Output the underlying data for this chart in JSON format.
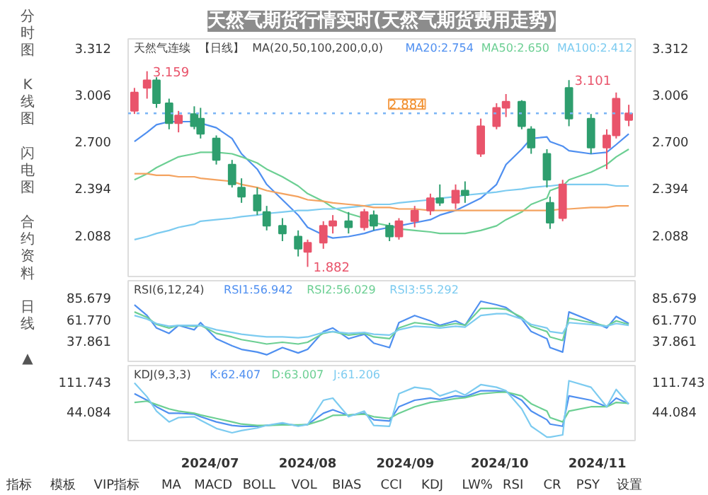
{
  "chart_data": [
    {
      "type": "other",
      "annotations": [
        "分时图",
        "K线图",
        "闪电图",
        "合约资料",
        "日线 ▲"
      ]
    },
    {
      "type": "candlestick",
      "title": "天然气期货行情实时(天然气期货费用走势)",
      "x": [
        "2024-06-07",
        "2024-06-11",
        "2024-06-14",
        "2024-06-18",
        "2024-06-21",
        "2024-06-26",
        "2024-06-28",
        "2024-07-03",
        "2024-07-08",
        "2024-07-11",
        "2024-07-16",
        "2024-07-19",
        "2024-07-24",
        "2024-07-29",
        "2024-08-01",
        "2024-08-06",
        "2024-08-09",
        "2024-08-14",
        "2024-08-19",
        "2024-08-22",
        "2024-08-27",
        "2024-08-30",
        "2024-09-04",
        "2024-09-09",
        "2024-09-12",
        "2024-09-17",
        "2024-09-20",
        "2024-09-25",
        "2024-09-30",
        "2024-10-03",
        "2024-10-08",
        "2024-10-11",
        "2024-10-16",
        "2024-10-17",
        "2024-10-21",
        "2024-10-23",
        "2024-10-30",
        "2024-11-04",
        "2024-11-07",
        "2024-11-11"
      ],
      "ohlc": [
        [
          2.9,
          3.05,
          2.88,
          3.02
        ],
        [
          3.05,
          3.159,
          2.98,
          3.1
        ],
        [
          3.1,
          3.12,
          2.92,
          2.95
        ],
        [
          2.95,
          2.98,
          2.78,
          2.82
        ],
        [
          2.82,
          2.9,
          2.76,
          2.87
        ],
        [
          2.88,
          2.93,
          2.78,
          2.8
        ],
        [
          2.85,
          2.92,
          2.72,
          2.75
        ],
        [
          2.72,
          2.74,
          2.55,
          2.58
        ],
        [
          2.55,
          2.58,
          2.4,
          2.42
        ],
        [
          2.4,
          2.46,
          2.3,
          2.34
        ],
        [
          2.35,
          2.4,
          2.22,
          2.25
        ],
        [
          2.24,
          2.28,
          2.12,
          2.15
        ],
        [
          2.15,
          2.2,
          2.05,
          2.1
        ],
        [
          2.08,
          2.12,
          1.95,
          2.0
        ],
        [
          1.98,
          2.06,
          1.882,
          2.04
        ],
        [
          2.04,
          2.18,
          2.0,
          2.15
        ],
        [
          2.15,
          2.22,
          2.1,
          2.18
        ],
        [
          2.18,
          2.24,
          2.1,
          2.14
        ],
        [
          2.14,
          2.26,
          2.12,
          2.24
        ],
        [
          2.22,
          2.25,
          2.12,
          2.15
        ],
        [
          2.15,
          2.17,
          2.05,
          2.08
        ],
        [
          2.08,
          2.2,
          2.06,
          2.18
        ],
        [
          2.18,
          2.28,
          2.14,
          2.25
        ],
        [
          2.25,
          2.36,
          2.22,
          2.33
        ],
        [
          2.33,
          2.42,
          2.28,
          2.3
        ],
        [
          2.3,
          2.42,
          2.26,
          2.38
        ],
        [
          2.38,
          2.44,
          2.3,
          2.35
        ],
        [
          2.62,
          2.85,
          2.6,
          2.8
        ],
        [
          2.8,
          2.95,
          2.78,
          2.92
        ],
        [
          2.92,
          3.01,
          2.86,
          2.96
        ],
        [
          2.96,
          2.97,
          2.78,
          2.8
        ],
        [
          2.78,
          2.8,
          2.62,
          2.66
        ],
        [
          2.62,
          2.65,
          2.4,
          2.45
        ],
        [
          2.3,
          2.34,
          2.13,
          2.17
        ],
        [
          2.2,
          2.45,
          2.18,
          2.42
        ],
        [
          3.05,
          3.101,
          2.8,
          2.85
        ],
        [
          2.85,
          2.88,
          2.62,
          2.66
        ],
        [
          2.66,
          2.78,
          2.52,
          2.74
        ],
        [
          2.74,
          3.02,
          2.72,
          2.98
        ],
        [
          2.84,
          2.94,
          2.8,
          2.884
        ]
      ],
      "colors": [
        "#e9546b",
        "#e9546b",
        "#2e9e6e",
        "#2e9e6e",
        "#e9546b",
        "#2e9e6e",
        "#2e9e6e",
        "#2e9e6e",
        "#2e9e6e",
        "#2e9e6e",
        "#2e9e6e",
        "#2e9e6e",
        "#2e9e6e",
        "#2e9e6e",
        "#e9546b",
        "#e9546b",
        "#e9546b",
        "#2e9e6e",
        "#e9546b",
        "#2e9e6e",
        "#2e9e6e",
        "#e9546b",
        "#e9546b",
        "#e9546b",
        "#2e9e6e",
        "#e9546b",
        "#2e9e6e",
        "#e9546b",
        "#e9546b",
        "#e9546b",
        "#2e9e6e",
        "#2e9e6e",
        "#2e9e6e",
        "#2e9e6e",
        "#e9546b",
        "#2e9e6e",
        "#2e9e6e",
        "#e9546b",
        "#e9546b",
        "#e9546b"
      ],
      "series": [
        {
          "type": "line",
          "name": "MA20:2.754",
          "color": "#4f8ff0",
          "values": [
            2.7,
            2.76,
            2.81,
            2.83,
            2.83,
            2.83,
            2.82,
            2.79,
            2.72,
            2.62,
            2.52,
            2.42,
            2.32,
            2.22,
            2.14,
            2.09,
            2.07,
            2.08,
            2.1,
            2.12,
            2.14,
            2.15,
            2.17,
            2.19,
            2.22,
            2.25,
            2.28,
            2.33,
            2.42,
            2.55,
            2.65,
            2.72,
            2.73,
            2.7,
            2.67,
            2.64,
            2.62,
            2.63,
            2.68,
            2.75
          ]
        },
        {
          "type": "line",
          "name": "MA50:2.650",
          "color": "#6ccf93",
          "values": [
            2.45,
            2.49,
            2.53,
            2.57,
            2.6,
            2.62,
            2.63,
            2.63,
            2.62,
            2.6,
            2.56,
            2.52,
            2.47,
            2.41,
            2.36,
            2.31,
            2.27,
            2.23,
            2.2,
            2.17,
            2.15,
            2.13,
            2.12,
            2.11,
            2.1,
            2.1,
            2.1,
            2.12,
            2.15,
            2.19,
            2.24,
            2.29,
            2.33,
            2.38,
            2.41,
            2.45,
            2.5,
            2.55,
            2.6,
            2.65
          ]
        },
        {
          "type": "line",
          "name": "MA100:2.412",
          "color": "#7ccbf0",
          "values": [
            2.06,
            2.08,
            2.1,
            2.12,
            2.14,
            2.16,
            2.18,
            2.19,
            2.2,
            2.21,
            2.22,
            2.23,
            2.24,
            2.25,
            2.25,
            2.26,
            2.26,
            2.27,
            2.28,
            2.29,
            2.29,
            2.3,
            2.31,
            2.32,
            2.33,
            2.34,
            2.35,
            2.36,
            2.37,
            2.38,
            2.39,
            2.4,
            2.41,
            2.41,
            2.42,
            2.42,
            2.42,
            2.42,
            2.41,
            2.41
          ]
        },
        {
          "type": "line",
          "color": "#f4a360",
          "values": [
            2.49,
            2.49,
            2.48,
            2.48,
            2.47,
            2.47,
            2.46,
            2.45,
            2.44,
            2.42,
            2.4,
            2.38,
            2.36,
            2.34,
            2.32,
            2.31,
            2.3,
            2.29,
            2.28,
            2.27,
            2.27,
            2.26,
            2.26,
            2.25,
            2.25,
            2.25,
            2.25,
            2.25,
            2.25,
            2.25,
            2.25,
            2.25,
            2.25,
            2.25,
            2.26,
            2.26,
            2.27,
            2.27,
            2.28,
            2.28
          ]
        }
      ],
      "annotations": [
        "天然气连续",
        "【日线】",
        "MA(20,50,100,200,0,0)",
        {
          "text": "3.159",
          "x": "2024-06-11",
          "y": 3.159
        },
        {
          "text": "3.101",
          "x": "2024-10-23",
          "y": 3.101
        },
        {
          "text": "1.882",
          "x": "2024-08-01",
          "y": 1.882
        }
      ],
      "ref_lines": [
        {
          "axis": "y",
          "value": 2.884,
          "label": "2.884",
          "color": "#7ab4f5",
          "line_style": "dotted"
        }
      ],
      "xlim": [
        "2024-06-05",
        "2024-11-13"
      ],
      "ylim": [
        1.81,
        3.37
      ],
      "yticks": [
        3.312,
        3.006,
        {
          "value": 2.7,
          "label": "2.700"
        },
        2.394,
        2.088
      ],
      "y2lim": [
        1.81,
        3.37
      ],
      "y2ticks": [
        3.312,
        3.006,
        {
          "value": 2.7,
          "label": "2.700"
        },
        2.394,
        2.088
      ],
      "tick_labels": "y"
    },
    {
      "type": "line",
      "x": [
        "2024-06-07",
        "2024-06-11",
        "2024-06-14",
        "2024-06-18",
        "2024-06-21",
        "2024-06-26",
        "2024-06-28",
        "2024-07-03",
        "2024-07-08",
        "2024-07-11",
        "2024-07-16",
        "2024-07-19",
        "2024-07-24",
        "2024-07-29",
        "2024-08-01",
        "2024-08-06",
        "2024-08-09",
        "2024-08-14",
        "2024-08-19",
        "2024-08-22",
        "2024-08-27",
        "2024-08-30",
        "2024-09-04",
        "2024-09-09",
        "2024-09-12",
        "2024-09-17",
        "2024-09-20",
        "2024-09-25",
        "2024-09-30",
        "2024-10-03",
        "2024-10-08",
        "2024-10-11",
        "2024-10-16",
        "2024-10-17",
        "2024-10-21",
        "2024-10-23",
        "2024-10-30",
        "2024-11-04",
        "2024-11-07",
        "2024-11-11"
      ],
      "series": [
        {
          "name": "RSI1:56.942",
          "color": "#4f8ff0",
          "values": [
            78,
            66,
            52,
            46,
            55,
            50,
            58,
            40,
            32,
            28,
            25,
            22,
            30,
            24,
            28,
            48,
            52,
            40,
            45,
            35,
            30,
            58,
            66,
            60,
            55,
            60,
            55,
            82,
            78,
            75,
            62,
            48,
            40,
            30,
            25,
            70,
            60,
            52,
            65,
            57
          ]
        },
        {
          "name": "RSI2:56.029",
          "color": "#6ccf93",
          "values": [
            70,
            64,
            56,
            52,
            55,
            54,
            55,
            46,
            42,
            39,
            36,
            34,
            36,
            34,
            36,
            46,
            48,
            44,
            46,
            42,
            40,
            52,
            58,
            56,
            54,
            57,
            55,
            74,
            74,
            73,
            64,
            54,
            48,
            42,
            38,
            63,
            58,
            54,
            60,
            56
          ]
        },
        {
          "name": "RSI3:55.292",
          "color": "#7ccbf0",
          "values": [
            66,
            62,
            57,
            54,
            55,
            55,
            55,
            50,
            47,
            45,
            43,
            42,
            42,
            41,
            42,
            47,
            48,
            46,
            47,
            45,
            44,
            50,
            54,
            53,
            52,
            54,
            53,
            66,
            68,
            68,
            62,
            56,
            52,
            48,
            46,
            58,
            56,
            54,
            57,
            55
          ]
        }
      ],
      "annotations": [
        "RSI(6,12,24)"
      ],
      "xlim": [
        "2024-06-05",
        "2024-11-13"
      ],
      "ylim": [
        13,
        105
      ],
      "yticks": [
        85.679,
        {
          "value": 61.77,
          "label": "61.770"
        },
        37.861
      ],
      "y2lim": [
        13,
        105
      ],
      "y2ticks": [
        85.679,
        {
          "value": 61.77,
          "label": "61.770"
        },
        37.861
      ],
      "tick_labels": "y"
    },
    {
      "type": "line",
      "x": [
        "2024-06-07",
        "2024-06-11",
        "2024-06-14",
        "2024-06-18",
        "2024-06-21",
        "2024-06-26",
        "2024-06-28",
        "2024-07-03",
        "2024-07-08",
        "2024-07-11",
        "2024-07-16",
        "2024-07-19",
        "2024-07-24",
        "2024-07-29",
        "2024-08-01",
        "2024-08-06",
        "2024-08-09",
        "2024-08-14",
        "2024-08-19",
        "2024-08-22",
        "2024-08-27",
        "2024-08-30",
        "2024-09-04",
        "2024-09-09",
        "2024-09-12",
        "2024-09-17",
        "2024-09-20",
        "2024-09-25",
        "2024-09-30",
        "2024-10-03",
        "2024-10-08",
        "2024-10-11",
        "2024-10-16",
        "2024-10-17",
        "2024-10-21",
        "2024-10-23",
        "2024-10-30",
        "2024-11-04",
        "2024-11-07",
        "2024-11-11"
      ],
      "series": [
        {
          "name": "K:62.407",
          "color": "#4f8ff0",
          "values": [
            85,
            70,
            55,
            40,
            40,
            38,
            32,
            20,
            12,
            10,
            10,
            12,
            15,
            12,
            14,
            40,
            48,
            35,
            40,
            25,
            22,
            55,
            70,
            75,
            72,
            80,
            78,
            92,
            92,
            90,
            70,
            45,
            25,
            15,
            10,
            80,
            70,
            55,
            75,
            62
          ]
        },
        {
          "name": "D:63.007",
          "color": "#6ccf93",
          "values": [
            65,
            68,
            60,
            50,
            45,
            40,
            36,
            28,
            20,
            15,
            12,
            12,
            13,
            13,
            14,
            25,
            35,
            36,
            38,
            32,
            28,
            40,
            55,
            65,
            68,
            74,
            76,
            85,
            88,
            89,
            80,
            62,
            45,
            30,
            20,
            45,
            55,
            55,
            65,
            63
          ]
        },
        {
          "name": "J:61.206",
          "color": "#7ccbf0",
          "values": [
            110,
            78,
            45,
            20,
            30,
            32,
            24,
            5,
            -5,
            0,
            6,
            12,
            18,
            10,
            14,
            70,
            75,
            32,
            45,
            12,
            10,
            85,
            100,
            95,
            80,
            92,
            82,
            106,
            100,
            92,
            50,
            10,
            -15,
            -15,
            -10,
            115,
            100,
            55,
            95,
            61
          ]
        }
      ],
      "annotations": [
        "KDJ(9,3,3)"
      ],
      "xlim": [
        "2024-06-05",
        "2024-11-13"
      ],
      "xticks": [
        {
          "value": "2024-07-01",
          "label": "2024/07"
        },
        {
          "value": "2024-08-01",
          "label": "2024/08"
        },
        {
          "value": "2024-09-01",
          "label": "2024/09"
        },
        {
          "value": "2024-10-01",
          "label": "2024/10"
        },
        {
          "value": "2024-11-01",
          "label": "2024/11"
        }
      ],
      "ylim": [
        -23,
        150
      ],
      "yticks": [
        111.743,
        44.084
      ],
      "y2lim": [
        -23,
        150
      ],
      "y2ticks": [
        111.743,
        44.084
      ]
    },
    {
      "type": "other",
      "annotations": [
        "指标",
        "模板",
        "VIP指标",
        "MA",
        "MACD",
        "BOLL",
        "VOL",
        "BIAS",
        "CCI",
        "KDJ",
        "LW%",
        "RSI",
        "CR",
        "PSY",
        "设置"
      ]
    }
  ]
}
